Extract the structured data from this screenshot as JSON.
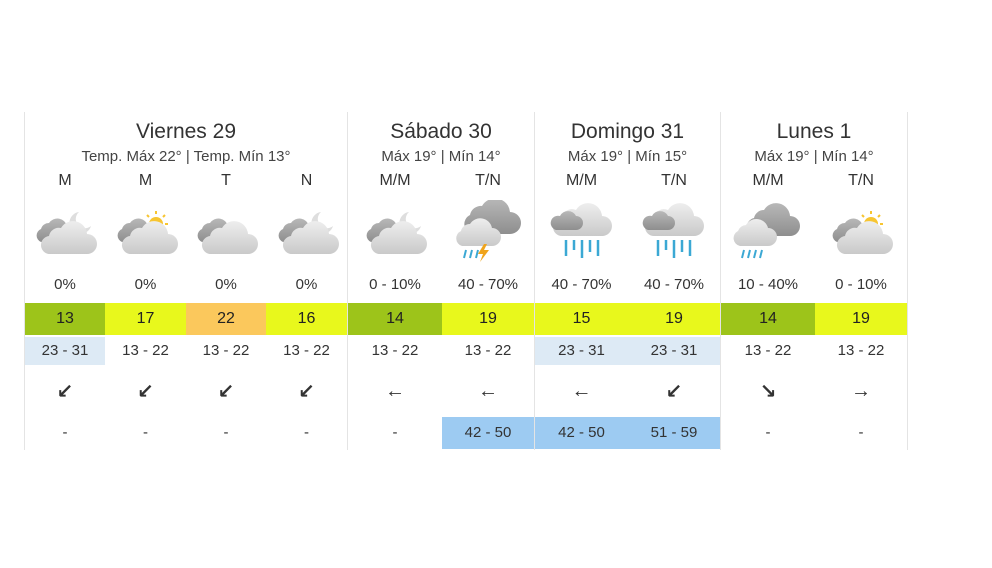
{
  "days": [
    {
      "title": "Viernes 29",
      "subtitle": "Temp. Máx 22° | Temp. Mín 13°",
      "periods": [
        {
          "label": "M",
          "icon": "cloudy-moon-icon",
          "precip": "0%",
          "temp": "13",
          "temp_color": "#9dc41a",
          "range": "23 - 31",
          "range_color": "#ddeaf5",
          "wind": "↙",
          "wind_icon": "wind-southwest-arrow-icon",
          "gust": "-",
          "gust_color": "#ffffff"
        },
        {
          "label": "M",
          "icon": "partly-cloudy-sun-icon",
          "precip": "0%",
          "temp": "17",
          "temp_color": "#e8f81c",
          "range": "13 - 22",
          "range_color": "#ffffff",
          "wind": "↙",
          "wind_icon": "wind-southwest-arrow-icon",
          "gust": "-",
          "gust_color": "#ffffff"
        },
        {
          "label": "T",
          "icon": "cloudy-icon",
          "precip": "0%",
          "temp": "22",
          "temp_color": "#fbc85c",
          "range": "13 - 22",
          "range_color": "#ffffff",
          "wind": "↙",
          "wind_icon": "wind-southwest-arrow-icon",
          "gust": "-",
          "gust_color": "#ffffff"
        },
        {
          "label": "N",
          "icon": "cloudy-moon-icon",
          "precip": "0%",
          "temp": "16",
          "temp_color": "#e8f81c",
          "range": "13 - 22",
          "range_color": "#ffffff",
          "wind": "↙",
          "wind_icon": "wind-southwest-arrow-icon",
          "gust": "-",
          "gust_color": "#ffffff"
        }
      ]
    },
    {
      "title": "Sábado 30",
      "subtitle": "Máx 19° | Mín 14°",
      "periods": [
        {
          "label": "M/M",
          "icon": "cloudy-moon-icon",
          "precip": "0 - 10%",
          "temp": "14",
          "temp_color": "#9dc41a",
          "range": "13 - 22",
          "range_color": "#ffffff",
          "wind": "←",
          "wind_icon": "wind-west-arrow-icon",
          "gust": "-",
          "gust_color": "#ffffff"
        },
        {
          "label": "T/N",
          "icon": "thunderstorm-rain-icon",
          "precip": "40 - 70%",
          "temp": "19",
          "temp_color": "#e8f81c",
          "range": "13 - 22",
          "range_color": "#ffffff",
          "wind": "←",
          "wind_icon": "wind-west-arrow-icon",
          "gust": "42 - 50",
          "gust_color": "#9dcbf2"
        }
      ]
    },
    {
      "title": "Domingo 31",
      "subtitle": "Máx 19° | Mín 15°",
      "periods": [
        {
          "label": "M/M",
          "icon": "rain-icon",
          "precip": "40 - 70%",
          "temp": "15",
          "temp_color": "#e8f81c",
          "range": "23 - 31",
          "range_color": "#ddeaf5",
          "wind": "←",
          "wind_icon": "wind-west-arrow-icon",
          "gust": "42 - 50",
          "gust_color": "#9dcbf2"
        },
        {
          "label": "T/N",
          "icon": "rain-icon",
          "precip": "40 - 70%",
          "temp": "19",
          "temp_color": "#e8f81c",
          "range": "23 - 31",
          "range_color": "#ddeaf5",
          "wind": "↙",
          "wind_icon": "wind-southwest-arrow-icon",
          "gust": "51 - 59",
          "gust_color": "#9dcbf2"
        }
      ]
    },
    {
      "title": "Lunes 1",
      "subtitle": "Máx 19° | Mín 14°",
      "periods": [
        {
          "label": "M/M",
          "icon": "showers-icon",
          "precip": "10 - 40%",
          "temp": "14",
          "temp_color": "#9dc41a",
          "range": "13 - 22",
          "range_color": "#ffffff",
          "wind": "↘",
          "wind_icon": "wind-southeast-arrow-icon",
          "gust": "-",
          "gust_color": "#ffffff"
        },
        {
          "label": "T/N",
          "icon": "partly-cloudy-sun-icon",
          "precip": "0 - 10%",
          "temp": "19",
          "temp_color": "#e8f81c",
          "range": "13 - 22",
          "range_color": "#ffffff",
          "wind": "→",
          "wind_icon": "wind-east-arrow-icon",
          "gust": "-",
          "gust_color": "#ffffff"
        }
      ]
    }
  ]
}
